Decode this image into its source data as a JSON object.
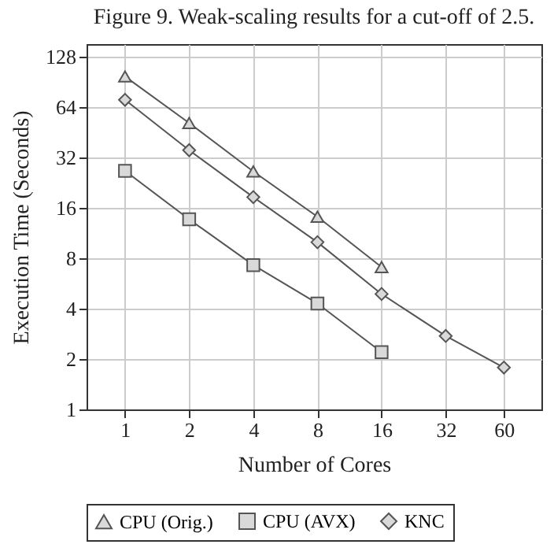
{
  "chart_data": {
    "type": "line",
    "title": "Figure 9.   Weak-scaling results for a cut-off of 2.5.",
    "xlabel": "Number of Cores",
    "ylabel": "Execution Time (Seconds)",
    "log": "xy",
    "grid": true,
    "legend": "bottom",
    "line_style": "solid",
    "xlim": [
      0.66,
      90
    ],
    "xticks": [
      1,
      2,
      4,
      8,
      16,
      32,
      60
    ],
    "ylim": [
      1,
      153
    ],
    "yticks": [
      1,
      2,
      4,
      8,
      16,
      32,
      64,
      128
    ],
    "series": [
      {
        "name": "CPU (Orig.)",
        "color": "#555555",
        "marker": "triangle",
        "x": [
          1,
          2,
          4,
          8,
          16
        ],
        "values": [
          98,
          51.6,
          26.5,
          14.2,
          7.1
        ]
      },
      {
        "name": "CPU (AVX)",
        "color": "#555555",
        "marker": "square",
        "x": [
          1,
          2,
          4,
          8,
          16
        ],
        "values": [
          26.7,
          13.7,
          7.3,
          4.3,
          2.2
        ]
      },
      {
        "name": "KNC",
        "color": "#555555",
        "marker": "diamond",
        "x": [
          1,
          2,
          4,
          8,
          16,
          32,
          60
        ],
        "values": [
          71,
          35.5,
          18.6,
          10,
          4.9,
          2.75,
          1.78
        ]
      }
    ]
  }
}
